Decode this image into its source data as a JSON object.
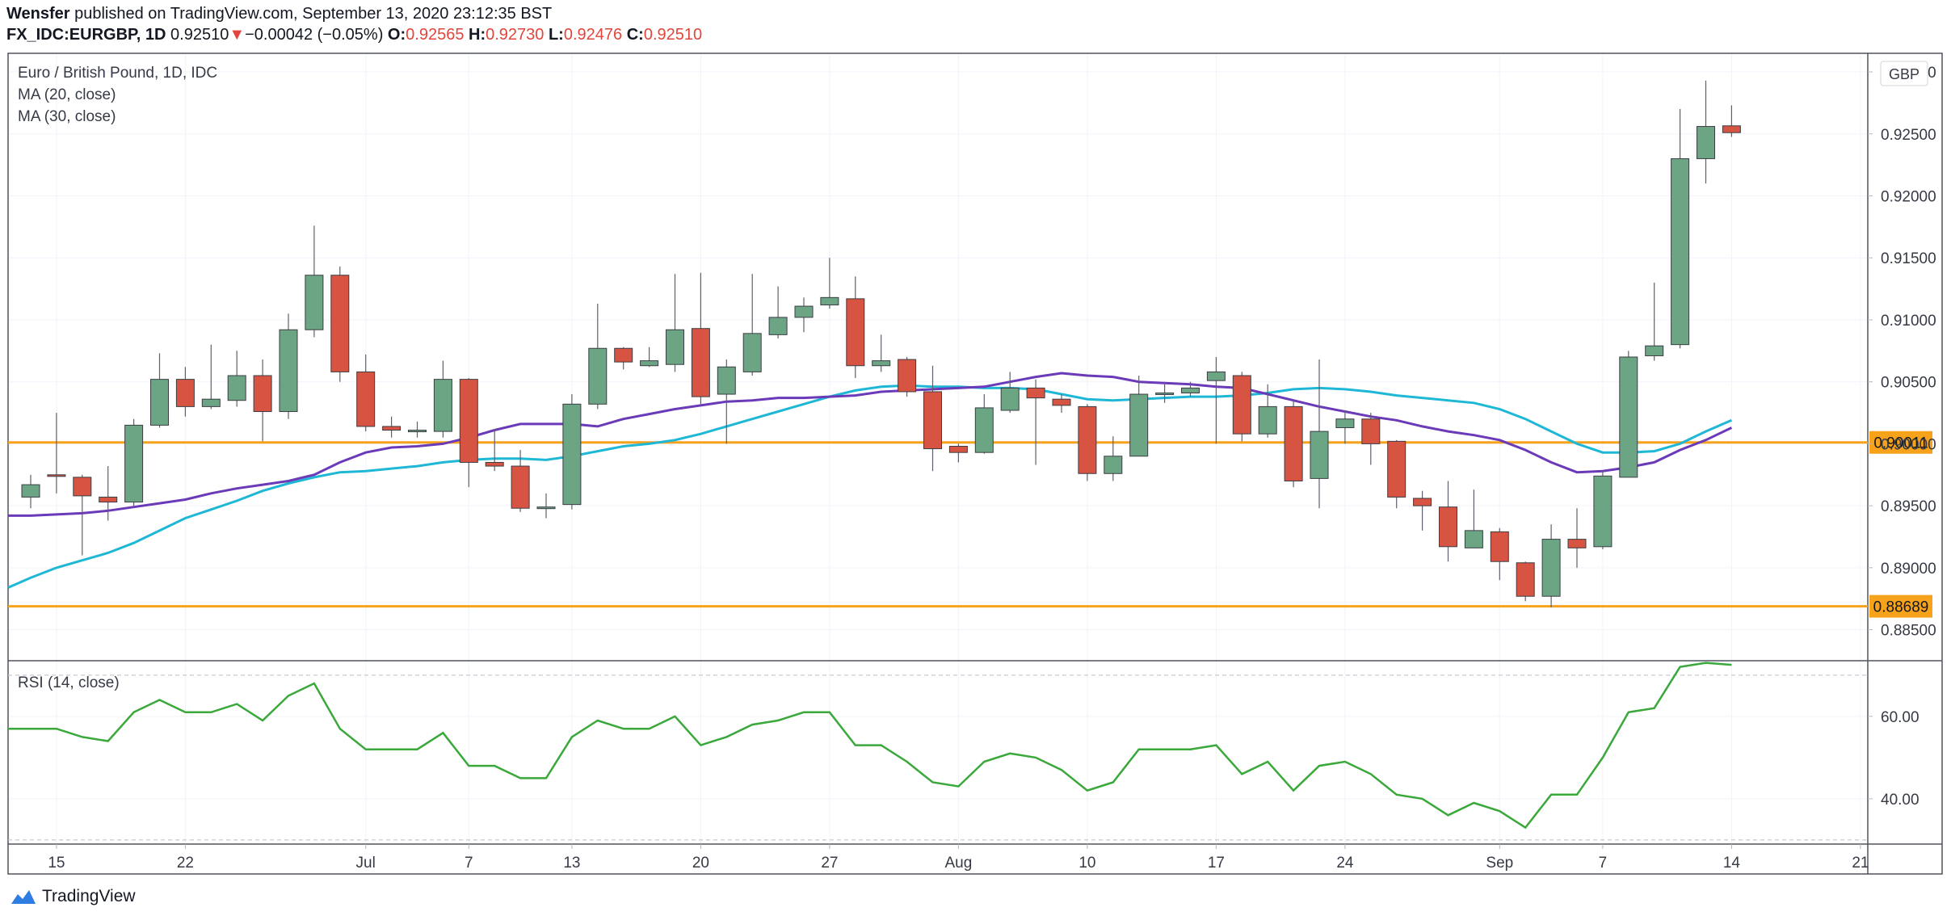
{
  "header": {
    "author": "Wensfer",
    "published_text": "published on TradingView.com, September 13, 2020 23:12:35 BST",
    "symbol": "FX_IDC:EURGBP, 1D",
    "last": "0.92510",
    "arrow": "▼",
    "change": "−0.00042 (−0.05%)",
    "o_label": "O:",
    "o": "0.92565",
    "h_label": "H:",
    "h": "0.92730",
    "l_label": "L:",
    "l": "0.92476",
    "c_label": "C:",
    "c": "0.92510"
  },
  "legend": {
    "title": "Euro / British Pound, 1D, IDC",
    "ma20": "MA (20, close)",
    "ma30": "MA (30, close)",
    "rsi": "RSI (14, close)"
  },
  "currency_label": "GBP",
  "footer": {
    "brand": "TradingView"
  },
  "colors": {
    "up": "#6ba583",
    "down": "#d75442",
    "ma20": "#6a3ab8",
    "ma30": "#1eb8d6",
    "rsi": "#3aa83a",
    "hline": "#f7a21b"
  },
  "chart_data": {
    "type": "candlestick",
    "price_ylim": [
      0.8825,
      0.9315
    ],
    "price_ticks": [
      "0.93000",
      "0.92500",
      "0.92000",
      "0.91500",
      "0.91000",
      "0.90500",
      "0.90000",
      "0.89500",
      "0.89000",
      "0.88500"
    ],
    "price_tick_values": [
      0.93,
      0.925,
      0.92,
      0.915,
      0.91,
      0.905,
      0.9,
      0.895,
      0.89,
      0.885
    ],
    "hlines": [
      {
        "value": 0.90011,
        "label": "0.90011"
      },
      {
        "value": 0.88689,
        "label": "0.88689"
      }
    ],
    "x_ticks": [
      {
        "label": "15",
        "day": 1
      },
      {
        "label": "22",
        "day": 6
      },
      {
        "label": "Jul",
        "day": 13
      },
      {
        "label": "7",
        "day": 17
      },
      {
        "label": "13",
        "day": 21
      },
      {
        "label": "20",
        "day": 26
      },
      {
        "label": "27",
        "day": 31
      },
      {
        "label": "Aug",
        "day": 36
      },
      {
        "label": "10",
        "day": 41
      },
      {
        "label": "17",
        "day": 46
      },
      {
        "label": "24",
        "day": 51
      },
      {
        "label": "Sep",
        "day": 57
      },
      {
        "label": "7",
        "day": 61
      },
      {
        "label": "14",
        "day": 66
      },
      {
        "label": "21",
        "day": 71
      }
    ],
    "candles": [
      [
        0.8957,
        0.8967,
        0.8975,
        0.8948
      ],
      [
        0.8975,
        0.8974,
        0.9025,
        0.896
      ],
      [
        0.8973,
        0.8958,
        0.8975,
        0.891
      ],
      [
        0.8957,
        0.8953,
        0.8982,
        0.8938
      ],
      [
        0.8953,
        0.9015,
        0.902,
        0.895
      ],
      [
        0.9015,
        0.9052,
        0.9073,
        0.9013
      ],
      [
        0.9052,
        0.903,
        0.9062,
        0.9022
      ],
      [
        0.903,
        0.9036,
        0.908,
        0.9028
      ],
      [
        0.9035,
        0.9055,
        0.9075,
        0.903
      ],
      [
        0.9055,
        0.9026,
        0.9068,
        0.9002
      ],
      [
        0.9026,
        0.9092,
        0.9105,
        0.902
      ],
      [
        0.9092,
        0.9136,
        0.9176,
        0.9086
      ],
      [
        0.9136,
        0.9058,
        0.9143,
        0.905
      ],
      [
        0.9058,
        0.9014,
        0.9072,
        0.901
      ],
      [
        0.9014,
        0.9011,
        0.9022,
        0.9005
      ],
      [
        0.9011,
        0.9011,
        0.9018,
        0.9005
      ],
      [
        0.901,
        0.9052,
        0.9067,
        0.9005
      ],
      [
        0.9052,
        0.8985,
        0.9053,
        0.8965
      ],
      [
        0.8985,
        0.8982,
        0.9012,
        0.8978
      ],
      [
        0.8982,
        0.8948,
        0.8995,
        0.8945
      ],
      [
        0.8948,
        0.8949,
        0.896,
        0.894
      ],
      [
        0.8951,
        0.9032,
        0.904,
        0.8947
      ],
      [
        0.9032,
        0.9077,
        0.9113,
        0.9028
      ],
      [
        0.9077,
        0.9066,
        0.9078,
        0.906
      ],
      [
        0.9063,
        0.9067,
        0.9078,
        0.9062
      ],
      [
        0.9064,
        0.9092,
        0.9137,
        0.9058
      ],
      [
        0.9093,
        0.9038,
        0.9138,
        0.9032
      ],
      [
        0.904,
        0.9062,
        0.9068,
        0.9
      ],
      [
        0.9058,
        0.9089,
        0.9137,
        0.9055
      ],
      [
        0.9088,
        0.9102,
        0.9127,
        0.9085
      ],
      [
        0.9102,
        0.9111,
        0.9118,
        0.909
      ],
      [
        0.9112,
        0.9118,
        0.915,
        0.9109
      ],
      [
        0.9117,
        0.9063,
        0.9135,
        0.9053
      ],
      [
        0.9063,
        0.9067,
        0.9088,
        0.9058
      ],
      [
        0.9068,
        0.9042,
        0.907,
        0.9038
      ],
      [
        0.9042,
        0.8996,
        0.9063,
        0.8978
      ],
      [
        0.8998,
        0.8993,
        0.9,
        0.8985
      ],
      [
        0.8993,
        0.9029,
        0.904,
        0.8992
      ],
      [
        0.9027,
        0.9045,
        0.9058,
        0.9025
      ],
      [
        0.9045,
        0.9037,
        0.9052,
        0.8983
      ],
      [
        0.9036,
        0.9031,
        0.904,
        0.9025
      ],
      [
        0.903,
        0.8976,
        0.9032,
        0.897
      ],
      [
        0.8976,
        0.899,
        0.9006,
        0.897
      ],
      [
        0.899,
        0.904,
        0.9055,
        0.899
      ],
      [
        0.904,
        0.9041,
        0.905,
        0.9033
      ],
      [
        0.9041,
        0.9045,
        0.905,
        0.9038
      ],
      [
        0.9051,
        0.9058,
        0.907,
        0.9
      ],
      [
        0.9055,
        0.9008,
        0.9058,
        0.9002
      ],
      [
        0.9008,
        0.903,
        0.9048,
        0.9005
      ],
      [
        0.903,
        0.897,
        0.9035,
        0.8965
      ],
      [
        0.8972,
        0.901,
        0.9068,
        0.8948
      ],
      [
        0.9013,
        0.902,
        0.9027,
        0.9
      ],
      [
        0.902,
        0.9,
        0.9025,
        0.8983
      ],
      [
        0.9002,
        0.8957,
        0.9003,
        0.8948
      ],
      [
        0.8956,
        0.895,
        0.8962,
        0.893
      ],
      [
        0.8949,
        0.8917,
        0.897,
        0.8905
      ],
      [
        0.8916,
        0.893,
        0.8963,
        0.8916
      ],
      [
        0.8929,
        0.8905,
        0.8932,
        0.889
      ],
      [
        0.8904,
        0.8877,
        0.8905,
        0.8873
      ],
      [
        0.8877,
        0.8923,
        0.8935,
        0.8868
      ],
      [
        0.8923,
        0.8916,
        0.8948,
        0.89
      ],
      [
        0.8917,
        0.8974,
        0.8978,
        0.8915
      ],
      [
        0.8973,
        0.907,
        0.9075,
        0.8973
      ],
      [
        0.9071,
        0.9079,
        0.913,
        0.9067
      ],
      [
        0.908,
        0.923,
        0.927,
        0.9077
      ],
      [
        0.923,
        0.9256,
        0.9293,
        0.921
      ],
      [
        0.92565,
        0.9251,
        0.9273,
        0.92476
      ]
    ],
    "ma20": [
      0.8942,
      0.8943,
      0.8944,
      0.8946,
      0.8949,
      0.8952,
      0.8955,
      0.896,
      0.8964,
      0.8967,
      0.897,
      0.8975,
      0.8985,
      0.8993,
      0.8997,
      0.8998,
      0.9,
      0.9005,
      0.9011,
      0.9016,
      0.9016,
      0.9016,
      0.9014,
      0.902,
      0.9024,
      0.9028,
      0.9031,
      0.9034,
      0.9035,
      0.9037,
      0.9037,
      0.9038,
      0.9039,
      0.9042,
      0.9043,
      0.9044,
      0.9045,
      0.9046,
      0.905,
      0.9054,
      0.9057,
      0.9055,
      0.9054,
      0.905,
      0.9049,
      0.9048,
      0.9046,
      0.9045,
      0.904,
      0.9035,
      0.903,
      0.9026,
      0.9022,
      0.9019,
      0.9014,
      0.901,
      0.9007,
      0.9003,
      0.8995,
      0.8985,
      0.8977,
      0.8978,
      0.8981,
      0.8985,
      0.8995,
      0.9003,
      0.9013
    ],
    "ma30": [
      0.8892,
      0.89,
      0.8906,
      0.8912,
      0.892,
      0.893,
      0.894,
      0.8947,
      0.8954,
      0.8962,
      0.8968,
      0.8973,
      0.8977,
      0.8978,
      0.898,
      0.8982,
      0.8985,
      0.8987,
      0.8988,
      0.8988,
      0.8987,
      0.899,
      0.8994,
      0.8998,
      0.9,
      0.9003,
      0.9008,
      0.9014,
      0.902,
      0.9026,
      0.9032,
      0.9038,
      0.9043,
      0.9046,
      0.9047,
      0.9046,
      0.9046,
      0.9045,
      0.9045,
      0.9044,
      0.904,
      0.9036,
      0.9035,
      0.9036,
      0.9037,
      0.9038,
      0.9038,
      0.9039,
      0.9041,
      0.9044,
      0.9045,
      0.9044,
      0.9042,
      0.9039,
      0.9037,
      0.9035,
      0.9033,
      0.9028,
      0.902,
      0.901,
      0.9,
      0.8993,
      0.8993,
      0.8994,
      0.9,
      0.901,
      0.9019
    ],
    "rsi_ylim": [
      29,
      73.5
    ],
    "rsi_ticks": [
      "60.00",
      "40.00"
    ],
    "rsi_tick_values": [
      60,
      40
    ],
    "rsi_bands": [
      70,
      30
    ],
    "rsi": [
      57,
      57,
      55,
      54,
      61,
      64,
      61,
      61,
      63,
      59,
      65,
      68,
      57,
      52,
      52,
      52,
      56,
      48,
      48,
      45,
      45,
      55,
      59,
      57,
      57,
      60,
      53,
      55,
      58,
      59,
      61,
      61,
      53,
      53,
      49,
      44,
      43,
      49,
      51,
      50,
      47,
      42,
      44,
      52,
      52,
      52,
      53,
      46,
      49,
      42,
      48,
      49,
      46,
      41,
      40,
      36,
      39,
      37,
      33,
      41,
      41,
      50,
      61,
      62,
      72,
      73,
      72.5
    ]
  }
}
